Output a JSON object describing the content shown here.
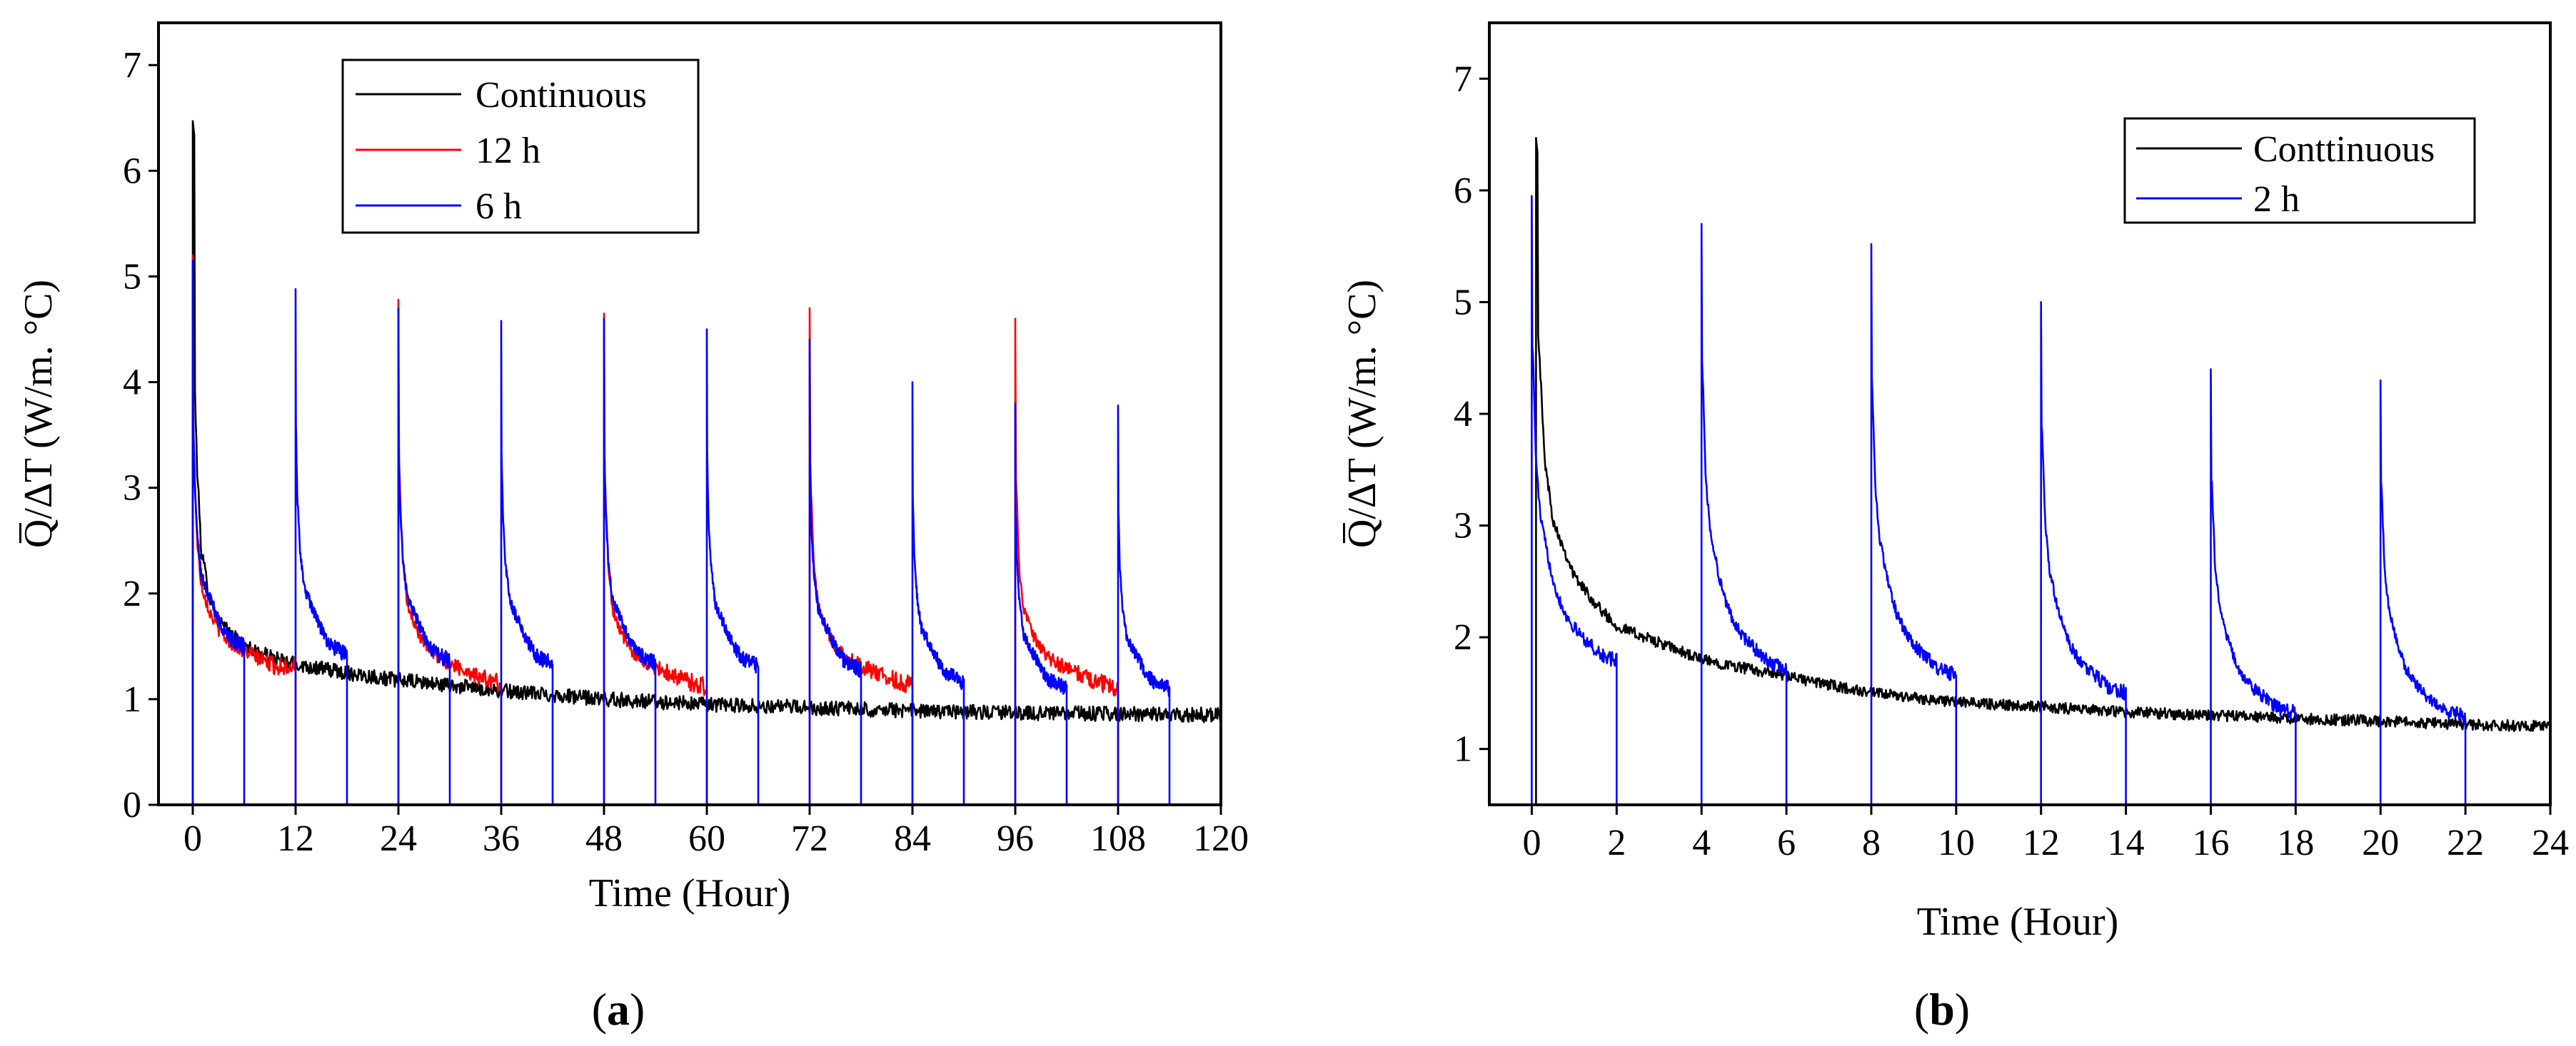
{
  "figure": {
    "panels": [
      {
        "label_prefix": "(",
        "label_letter": "a",
        "label_suffix": ")"
      },
      {
        "label_prefix": "(",
        "label_letter": "b",
        "label_suffix": ")"
      }
    ]
  },
  "chart_data": [
    {
      "type": "line",
      "xlabel": "Time (Hour)",
      "ylabel": "Q̅/ΔT (W/m. °C)",
      "xlim": [
        -4,
        120
      ],
      "ylim": [
        0,
        7.4
      ],
      "xticks": [
        0,
        12,
        24,
        36,
        48,
        60,
        72,
        84,
        96,
        108,
        120
      ],
      "yticks": [
        0,
        1,
        2,
        3,
        4,
        5,
        6,
        7
      ],
      "legend_position": "top-center",
      "series": [
        {
          "name": "Continuous",
          "color": "#000000",
          "model": "continuous",
          "start": 0,
          "end": 120,
          "peak": 6.47,
          "x": [
            0.05,
            0.5,
            1,
            2,
            3,
            4,
            6,
            9,
            12,
            18,
            24,
            36,
            48,
            60,
            72,
            84,
            96,
            108,
            120
          ],
          "y": [
            4.5,
            3.2,
            2.4,
            1.95,
            1.75,
            1.65,
            1.5,
            1.4,
            1.33,
            1.25,
            1.18,
            1.08,
            1.0,
            0.95,
            0.92,
            0.89,
            0.87,
            0.86,
            0.85
          ],
          "noise": 0.07
        },
        {
          "name": "12 h",
          "color": "#ff0000",
          "model": "intermittent",
          "period": 24,
          "on_hours": 12,
          "cycles": 5,
          "duration": 120,
          "peaks": [
            5.2,
            4.78,
            4.65,
            4.7,
            4.6
          ],
          "u": [
            0.02,
            0.2,
            0.5,
            1,
            2,
            3,
            4,
            6,
            8,
            10,
            12
          ],
          "f": [
            0.7,
            0.62,
            0.48,
            0.4,
            0.35,
            0.32,
            0.3,
            0.28,
            0.265,
            0.25,
            0.24
          ],
          "baselines": [
            1.25,
            1.0,
            0.95,
            0.92,
            0.9
          ],
          "base_growth": 0.07,
          "noise": 0.09
        },
        {
          "name": "6 h",
          "color": "#0000ff",
          "model": "intermittent",
          "period": 12,
          "on_hours": 6,
          "cycles": 10,
          "duration": 120,
          "peaks": [
            5.15,
            4.88,
            4.7,
            4.58,
            4.6,
            4.5,
            4.4,
            4.0,
            3.8,
            3.78
          ],
          "u": [
            0.02,
            0.2,
            0.5,
            1,
            2,
            3,
            4,
            5,
            6
          ],
          "f": [
            0.75,
            0.6,
            0.5,
            0.42,
            0.38,
            0.34,
            0.31,
            0.3,
            0.29
          ],
          "baselines": [
            1.1,
            1.05,
            1.0,
            0.98,
            0.95,
            0.93,
            0.92,
            0.9,
            0.88,
            0.87
          ],
          "base_growth": 0.1,
          "noise": 0.08
        }
      ]
    },
    {
      "type": "line",
      "xlabel": "Time (Hour)",
      "ylabel": "Q̅/ΔT (W/m. °C)",
      "xlim": [
        -1,
        24
      ],
      "ylim": [
        0.5,
        7.5
      ],
      "xticks": [
        0,
        2,
        4,
        6,
        8,
        10,
        12,
        14,
        16,
        18,
        20,
        22,
        24
      ],
      "yticks": [
        1,
        2,
        3,
        4,
        5,
        6,
        7
      ],
      "legend_position": "top-right",
      "series": [
        {
          "name": "Conttinuous",
          "color": "#000000",
          "model": "continuous",
          "start": 0.1,
          "end": 24,
          "peak": 6.47,
          "x": [
            0.12,
            0.3,
            0.5,
            1,
            1.5,
            2,
            3,
            4,
            6,
            8,
            10,
            12,
            14,
            16,
            18,
            20,
            22,
            24
          ],
          "y": [
            5.0,
            3.6,
            3.05,
            2.55,
            2.3,
            2.1,
            1.95,
            1.8,
            1.65,
            1.5,
            1.42,
            1.38,
            1.33,
            1.3,
            1.27,
            1.25,
            1.22,
            1.2
          ],
          "noise": 0.05
        },
        {
          "name": "2 h",
          "color": "#0000ff",
          "model": "intermittent",
          "period": 4,
          "on_hours": 2,
          "cycles": 6,
          "duration": 24,
          "peaks": [
            5.95,
            5.7,
            5.52,
            5.0,
            4.4,
            4.3
          ],
          "u": [
            0.02,
            0.1,
            0.2,
            0.4,
            0.6,
            0.8,
            1.0,
            1.3,
            1.6,
            2.0
          ],
          "f": [
            0.78,
            0.6,
            0.52,
            0.45,
            0.4,
            0.37,
            0.35,
            0.33,
            0.31,
            0.3
          ],
          "baselines": [
            1.3,
            1.2,
            1.2,
            1.15,
            1.1,
            1.1
          ],
          "base_growth": 0.12,
          "noise": 0.07
        }
      ]
    }
  ]
}
